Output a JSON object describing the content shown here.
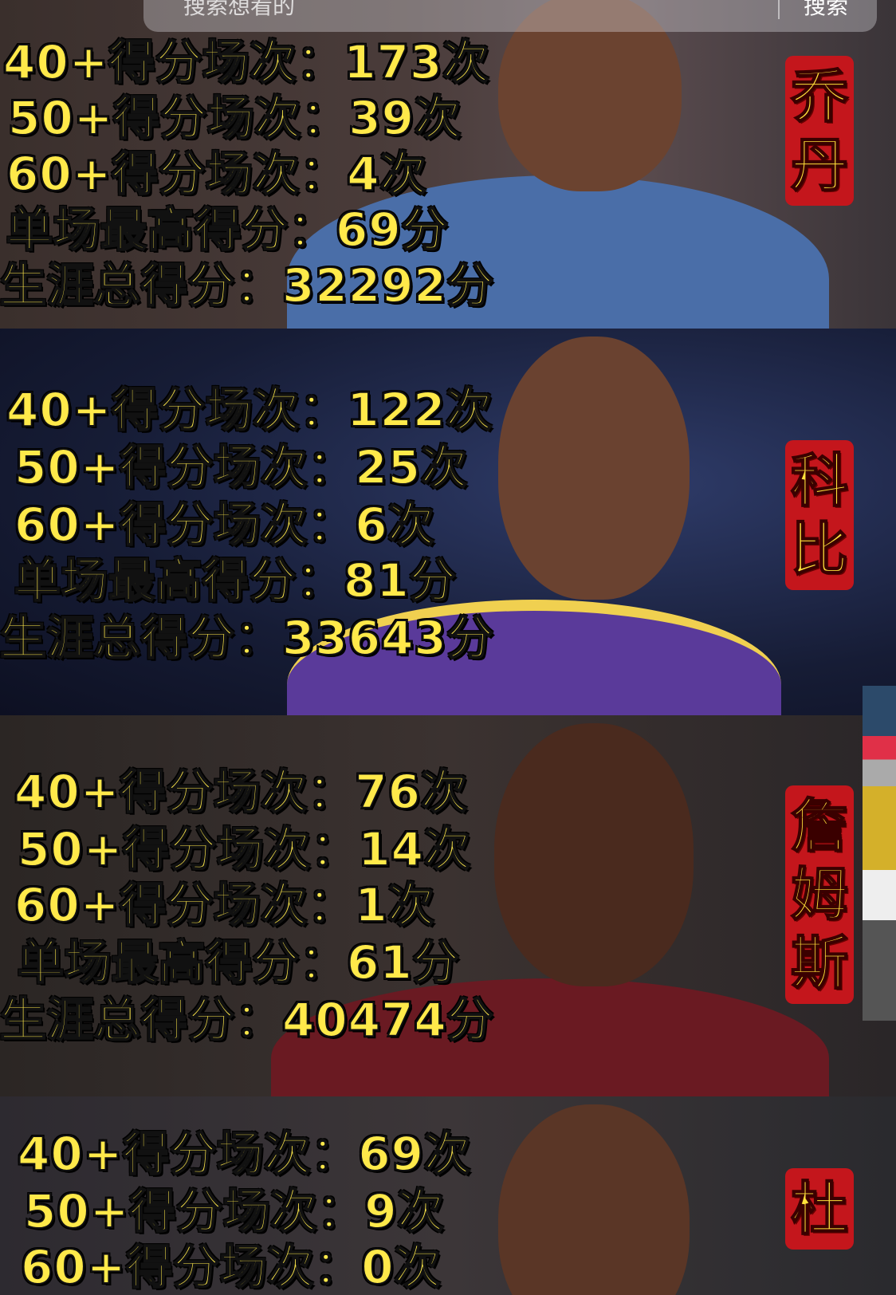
{
  "search": {
    "placeholder": "搜索想看的",
    "button": "搜索"
  },
  "players": [
    {
      "name": "乔丹",
      "stats": [
        "40+得分场次：173次",
        "50+得分场次：39次",
        "60+得分场次：4次",
        "单场最高得分：69分",
        "生涯总得分：32292分"
      ],
      "jersey": "#4a6ea8"
    },
    {
      "name": "科比",
      "stats": [
        "40+得分场次：122次",
        "50+得分场次：25次",
        "60+得分场次：6次",
        "单场最高得分：81分",
        "生涯总得分：33643分"
      ],
      "jersey": "#5a3a9a"
    },
    {
      "name": "詹姆斯",
      "stats": [
        "40+得分场次：76次",
        "50+得分场次：14次",
        "60+得分场次：1次",
        "单场最高得分：61分",
        "生涯总得分：40474分"
      ],
      "jersey": "#6a1a22"
    },
    {
      "name": "杜",
      "stats": [
        "40+得分场次：69次",
        "50+得分场次：9次",
        "60+得分场次：0次"
      ],
      "jersey": "#333"
    }
  ]
}
